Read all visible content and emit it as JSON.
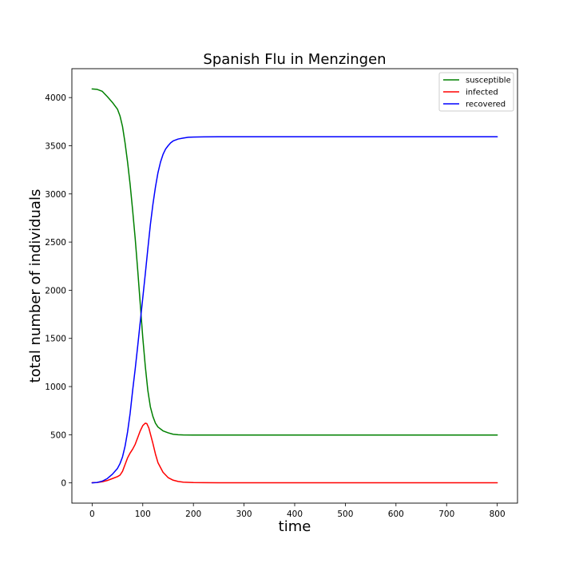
{
  "chart_data": {
    "type": "line",
    "title": "Spanish Flu in Menzingen",
    "xlabel": "time",
    "ylabel": "total number of individuals",
    "xlim": [
      -40,
      840
    ],
    "ylim": [
      -210,
      4300
    ],
    "x_ticks": [
      0,
      100,
      200,
      300,
      400,
      500,
      600,
      700,
      800
    ],
    "y_ticks": [
      0,
      500,
      1000,
      1500,
      2000,
      2500,
      3000,
      3500,
      4000
    ],
    "grid": false,
    "legend_position": "top-right",
    "series": [
      {
        "name": "susceptible",
        "color": "#008000",
        "x": [
          0,
          10,
          20,
          30,
          40,
          50,
          55,
          60,
          65,
          70,
          75,
          80,
          85,
          90,
          95,
          100,
          105,
          110,
          115,
          120,
          125,
          130,
          140,
          150,
          160,
          170,
          180,
          200,
          220,
          250,
          300,
          400,
          500,
          600,
          700,
          800
        ],
        "y": [
          4090,
          4085,
          4065,
          4010,
          3950,
          3880,
          3810,
          3700,
          3530,
          3330,
          3100,
          2830,
          2540,
          2210,
          1860,
          1510,
          1210,
          960,
          790,
          690,
          620,
          580,
          540,
          520,
          505,
          500,
          498,
          497,
          497,
          497,
          497,
          497,
          497,
          497,
          497,
          497
        ]
      },
      {
        "name": "infected",
        "color": "#ff0000",
        "x": [
          0,
          10,
          20,
          30,
          40,
          50,
          55,
          60,
          65,
          70,
          75,
          80,
          85,
          90,
          95,
          100,
          105,
          108,
          112,
          115,
          120,
          125,
          130,
          140,
          150,
          160,
          170,
          180,
          200,
          220,
          250,
          300,
          400,
          500,
          600,
          700,
          800
        ],
        "y": [
          2,
          5,
          12,
          25,
          45,
          65,
          80,
          120,
          190,
          260,
          310,
          350,
          400,
          470,
          540,
          595,
          620,
          615,
          570,
          510,
          410,
          300,
          210,
          110,
          55,
          28,
          15,
          8,
          3,
          2,
          1,
          1,
          1,
          1,
          1,
          1,
          1
        ]
      },
      {
        "name": "recovered",
        "color": "#0000ff",
        "x": [
          0,
          10,
          20,
          30,
          40,
          50,
          55,
          60,
          65,
          70,
          75,
          80,
          85,
          90,
          95,
          100,
          105,
          110,
          115,
          120,
          125,
          130,
          135,
          140,
          145,
          150,
          155,
          160,
          170,
          180,
          190,
          200,
          220,
          250,
          300,
          400,
          500,
          600,
          700,
          800
        ],
        "y": [
          0,
          5,
          18,
          45,
          90,
          150,
          200,
          270,
          380,
          530,
          720,
          960,
          1180,
          1420,
          1670,
          1920,
          2170,
          2430,
          2680,
          2890,
          3070,
          3220,
          3330,
          3410,
          3465,
          3500,
          3530,
          3550,
          3570,
          3580,
          3588,
          3590,
          3592,
          3593,
          3593,
          3593,
          3593,
          3593,
          3593,
          3593
        ]
      }
    ]
  }
}
